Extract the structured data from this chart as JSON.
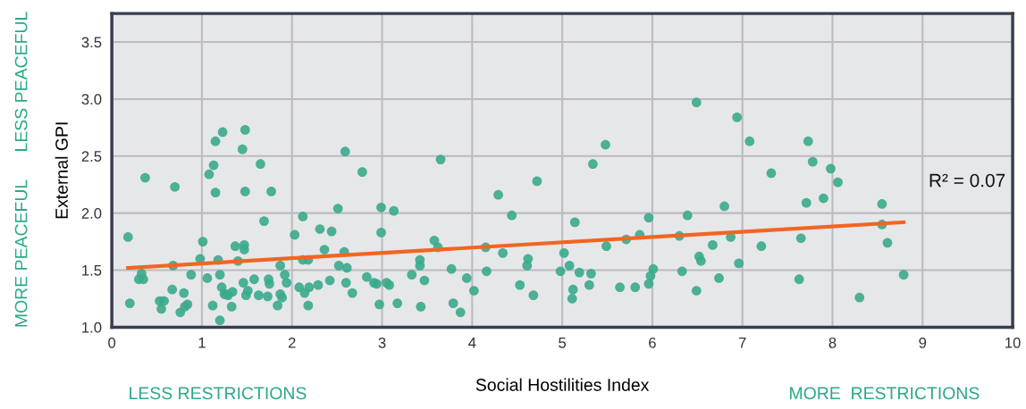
{
  "chart_data": {
    "type": "scatter",
    "xlabel": "Social Hostilities Index",
    "ylabel": "External GPI",
    "xlim": [
      0,
      10
    ],
    "xticks": [
      0,
      1,
      2,
      3,
      4,
      5,
      6,
      7,
      8,
      9,
      10
    ],
    "ylim": [
      1.0,
      3.75
    ],
    "yticks": [
      {
        "value": 1.0,
        "label": "1.0"
      },
      {
        "value": 1.5,
        "label": "1.5"
      },
      {
        "value": 2.0,
        "label": "2.0"
      },
      {
        "value": 2.5,
        "label": "2.5"
      },
      {
        "value": 3.0,
        "label": "3.0"
      },
      {
        "value": 3.5,
        "label": "3.5"
      }
    ],
    "grid": true,
    "legend": false,
    "annotations": [
      "LESS PEACEFUL",
      "MORE PEACEFUL",
      "LESS RESTRICTIONS",
      "MORE  RESTRICTIONS",
      "R² = 0.07"
    ],
    "series": [
      {
        "marker": "circle",
        "color": "#3aaa8c",
        "x": [
          0.18,
          0.2,
          0.3,
          0.35,
          0.33,
          0.37,
          0.53,
          0.58,
          0.55,
          0.67,
          0.68,
          0.7,
          0.76,
          0.8,
          0.81,
          0.84,
          0.88,
          0.98,
          1.01,
          1.06,
          1.08,
          1.12,
          1.13,
          1.15,
          1.15,
          1.18,
          1.2,
          1.2,
          1.22,
          1.23,
          1.25,
          1.27,
          1.29,
          1.33,
          1.34,
          1.37,
          1.4,
          1.45,
          1.46,
          1.47,
          1.47,
          1.48,
          1.48,
          1.49,
          1.51,
          1.58,
          1.63,
          1.65,
          1.69,
          1.73,
          1.74,
          1.75,
          1.77,
          1.84,
          1.87,
          1.87,
          1.89,
          1.92,
          1.94,
          2.03,
          2.08,
          2.12,
          2.18,
          2.12,
          2.14,
          2.19,
          2.18,
          2.29,
          2.31,
          2.36,
          2.42,
          2.44,
          2.51,
          2.52,
          2.59,
          2.58,
          2.61,
          2.6,
          2.67,
          2.78,
          2.83,
          2.91,
          2.94,
          2.97,
          2.99,
          2.99,
          3.05,
          3.08,
          3.13,
          3.17,
          3.33,
          3.42,
          3.42,
          3.43,
          3.47,
          3.58,
          3.62,
          3.65,
          3.77,
          3.79,
          3.87,
          3.94,
          4.02,
          4.15,
          4.16,
          4.29,
          4.34,
          4.44,
          4.53,
          4.61,
          4.62,
          4.68,
          4.72,
          4.98,
          5.02,
          5.08,
          5.11,
          5.12,
          5.14,
          5.19,
          5.3,
          5.32,
          5.34,
          5.48,
          5.49,
          5.64,
          5.71,
          5.81,
          5.86,
          5.96,
          5.96,
          5.98,
          6.01,
          6.3,
          6.33,
          6.39,
          6.49,
          6.49,
          6.52,
          6.54,
          6.67,
          6.74,
          6.8,
          6.87,
          6.94,
          6.96,
          7.08,
          7.21,
          7.32,
          7.73,
          7.78,
          7.98,
          8.06,
          7.71,
          7.9,
          8.55,
          7.65,
          8.55,
          8.61,
          7.63,
          8.3,
          8.79
        ],
        "values": [
          1.79,
          1.21,
          1.42,
          1.42,
          1.47,
          2.31,
          1.23,
          1.23,
          1.16,
          1.33,
          1.54,
          2.23,
          1.13,
          1.3,
          1.18,
          1.2,
          1.46,
          1.6,
          1.75,
          1.43,
          2.34,
          1.19,
          2.42,
          2.63,
          2.18,
          1.59,
          1.46,
          1.06,
          1.35,
          2.71,
          1.29,
          1.29,
          1.28,
          1.18,
          1.31,
          1.71,
          1.58,
          2.56,
          1.39,
          1.72,
          1.68,
          2.73,
          2.19,
          1.28,
          1.32,
          1.42,
          1.28,
          2.43,
          1.93,
          1.27,
          1.42,
          1.38,
          2.19,
          1.19,
          1.54,
          1.29,
          1.26,
          1.46,
          1.39,
          1.81,
          1.35,
          1.59,
          1.59,
          1.97,
          1.3,
          1.35,
          1.19,
          1.37,
          1.86,
          1.68,
          1.41,
          1.84,
          2.04,
          1.54,
          2.54,
          1.66,
          1.52,
          1.39,
          1.3,
          2.36,
          1.44,
          1.39,
          1.38,
          1.2,
          2.05,
          1.83,
          1.39,
          1.37,
          2.02,
          1.21,
          1.46,
          1.59,
          1.54,
          1.18,
          1.41,
          1.76,
          1.7,
          2.47,
          1.51,
          1.21,
          1.13,
          1.43,
          1.32,
          1.7,
          1.49,
          2.16,
          1.65,
          1.98,
          1.37,
          1.54,
          1.6,
          1.28,
          2.28,
          1.49,
          1.65,
          1.54,
          1.25,
          1.33,
          1.92,
          1.48,
          1.37,
          1.47,
          2.43,
          2.6,
          1.71,
          1.35,
          1.77,
          1.35,
          1.81,
          1.96,
          1.38,
          1.45,
          1.51,
          1.8,
          1.49,
          1.98,
          2.97,
          1.32,
          1.62,
          1.58,
          1.72,
          1.43,
          2.06,
          1.79,
          2.84,
          1.56,
          2.63,
          1.71,
          2.35,
          2.63,
          2.45,
          2.39,
          2.27,
          2.09,
          2.13,
          2.08,
          1.78,
          1.9,
          1.74,
          1.42,
          1.26,
          1.46
        ]
      },
      {
        "type": "line",
        "color": "#f26522",
        "x": [
          0.18,
          8.79
        ],
        "values": [
          1.52,
          1.92
        ]
      }
    ]
  }
}
